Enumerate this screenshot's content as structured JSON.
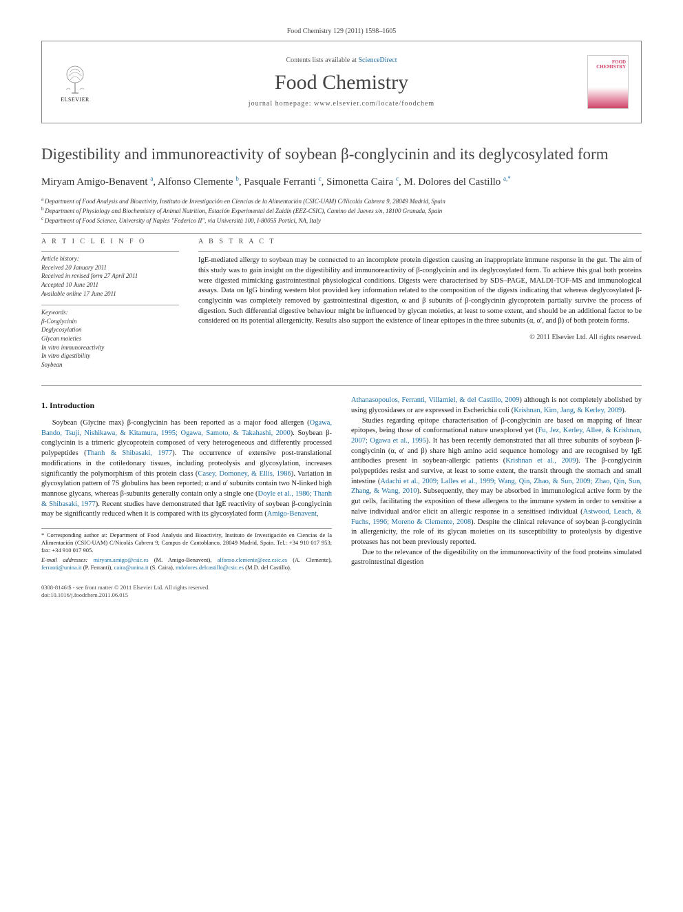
{
  "citation": "Food Chemistry 129 (2011) 1598–1605",
  "header": {
    "contents_prefix": "Contents lists available at ",
    "contents_link": "ScienceDirect",
    "journal": "Food Chemistry",
    "homepage": "journal homepage: www.elsevier.com/locate/foodchem",
    "publisher": "ELSEVIER",
    "cover_brand": "FOOD CHEMISTRY"
  },
  "title": "Digestibility and immunoreactivity of soybean β-conglycinin and its deglycosylated form",
  "authors_html": "Miryam Amigo-Benavent|a|, Alfonso Clemente|b|, Pasquale Ferranti|c|, Simonetta Caira|c|, M. Dolores del Castillo|a,*|",
  "authors": [
    {
      "name": "Miryam Amigo-Benavent",
      "aff": "a"
    },
    {
      "name": "Alfonso Clemente",
      "aff": "b"
    },
    {
      "name": "Pasquale Ferranti",
      "aff": "c"
    },
    {
      "name": "Simonetta Caira",
      "aff": "c"
    },
    {
      "name": "M. Dolores del Castillo",
      "aff": "a,*"
    }
  ],
  "affiliations": [
    {
      "sup": "a",
      "text": "Department of Food Analysis and Bioactivity, Instituto de Investigación en Ciencias de la Alimentación (CSIC-UAM) C/Nicolás Cabrera 9, 28049 Madrid, Spain"
    },
    {
      "sup": "b",
      "text": "Department of Physiology and Biochemistry of Animal Nutrition, Estación Experimental del Zaidín (EEZ-CSIC), Camino del Jueves s/n, 18100 Granada, Spain"
    },
    {
      "sup": "c",
      "text": "Department of Food Science, University of Naples \"Federico II\", via Università 100, I-80055 Portici, NA, Italy"
    }
  ],
  "article_info": {
    "label": "A R T I C L E   I N F O",
    "history_label": "Article history:",
    "history": [
      "Received 20 January 2011",
      "Received in revised form 27 April 2011",
      "Accepted 10 June 2011",
      "Available online 17 June 2011"
    ],
    "keywords_label": "Keywords:",
    "keywords": [
      "β-Conglycinin",
      "Deglycosylation",
      "Glycan moieties",
      "In vitro immunoreactivity",
      "In vitro digestibility",
      "Soybean"
    ]
  },
  "abstract": {
    "label": "A B S T R A C T",
    "text": "IgE-mediated allergy to soybean may be connected to an incomplete protein digestion causing an inappropriate immune response in the gut. The aim of this study was to gain insight on the digestibility and immunoreactivity of β-conglycinin and its deglycosylated form. To achieve this goal both proteins were digested mimicking gastrointestinal physiological conditions. Digests were characterised by SDS–PAGE, MALDI-TOF-MS and immunological assays. Data on IgG binding western blot provided key information related to the composition of the digests indicating that whereas deglycosylated β-conglycinin was completely removed by gastrointestinal digestion, α and β subunits of β-conglycinin glycoprotein partially survive the process of digestion. Such differential digestive behaviour might be influenced by glycan moieties, at least to some extent, and should be an additional factor to be considered on its potential allergenicity. Results also support the existence of linear epitopes in the three subunits (α, α′, and β) of both protein forms.",
    "copyright": "© 2011 Elsevier Ltd. All rights reserved."
  },
  "intro": {
    "heading": "1. Introduction",
    "p1a": "Soybean (Glycine max) β-conglycinin has been reported as a major food allergen (",
    "p1cite1": "Ogawa, Bando, Tsuji, Nishikawa, & Kitamura, 1995; Ogawa, Samoto, & Takahashi, 2000",
    "p1b": "). Soybean β-conglycinin is a trimeric glycoprotein composed of very heterogeneous and differently processed polypeptides (",
    "p1cite2": "Thanh & Shibasaki, 1977",
    "p1c": "). The occurrence of extensive post-translational modifications in the cotiledonary tissues, including proteolysis and glycosylation, increases significantly the polymorphism of this protein class (",
    "p1cite3": "Casey, Domoney, & Ellis, 1986",
    "p1d": "). Variation in glycosylation pattern of 7S globulins has been reported; α and α′ subunits contain two N-linked high mannose glycans, whereas β-subunits generally contain only a single one (",
    "p1cite4": "Doyle et al., 1986; Thanh & Shibasaki, 1977",
    "p1e": "). Recent studies have demonstrated that IgE reactivity of soybean β-conglycinin may be significantly reduced when it is compared with its glycosylated form (",
    "p1cite5": "Amigo-Benavent, ",
    "p1cite5b": "Athanasopoulos, Ferranti, Villamiel, & del Castillo, 2009",
    "p1f": ") although is not completely abolished by using glycosidases or are expressed in Escherichia coli (",
    "p1cite6": "Krishnan, Kim, Jang, & Kerley, 2009",
    "p1g": ").",
    "p2a": "Studies regarding epitope characterisation of β-conglycinin are based on mapping of linear epitopes, being those of conformational nature unexplored yet (",
    "p2cite1": "Fu, Jez, Kerley, Allee, & Krishnan, 2007; Ogawa et al., 1995",
    "p2b": "). It has been recently demonstrated that all three subunits of soybean β-conglycinin (α, α′ and β) share high amino acid sequence homology and are recognised by IgE antibodies present in soybean-allergic patients (",
    "p2cite2": "Krishnan et al., 2009",
    "p2c": "). The β-conglycinin polypeptides resist and survive, at least to some extent, the transit through the stomach and small intestine (",
    "p2cite3": "Adachi et al., 2009; Lalles et al., 1999; Wang, Qin, Zhao, & Sun, 2009; Zhao, Qin, Sun, Zhang, & Wang, 2010",
    "p2d": "). Subsequently, they may be absorbed in immunological active form by the gut cells, facilitating the exposition of these allergens to the immune system in order to sensitise a naïve individual and/or elicit an allergic response in a sensitised individual (",
    "p2cite4": "Astwood, Leach, & Fuchs, 1996; Moreno & Clemente, 2008",
    "p2e": "). Despite the clinical relevance of soybean β-conglycinin in allergenicity, the role of its glycan moieties on its susceptibility to proteolysis by digestive proteases has not been previously reported.",
    "p3": "Due to the relevance of the digestibility on the immunoreactivity of the food proteins simulated gastrointestinal digestion"
  },
  "footnote": {
    "corr_label": "* Corresponding author at: Department of Food Analysis and Bioactivity, Instituto de Investigación en Ciencias de la Alimentación (CSIC-UAM) C/Nicolás Cabrera 9, Campus de Cantoblanco, 28049 Madrid, Spain. Tel.: +34 910 017 953; fax: +34 910 017 905.",
    "email_label": "E-mail addresses: ",
    "emails": [
      {
        "addr": "miryam.amigo@csic.es",
        "who": "(M. Amigo-Benavent)"
      },
      {
        "addr": "alfonso.clemente@eez.csic.es",
        "who": "(A. Clemente)"
      },
      {
        "addr": "ferranti@unina.it",
        "who": "(P. Ferranti)"
      },
      {
        "addr": "caira@unina.it",
        "who": "(S. Caira)"
      },
      {
        "addr": "mdolores.delcastillo@csic.es",
        "who": "(M.D. del Castillo)"
      }
    ]
  },
  "footer": {
    "issn": "0308-8146/$ - see front matter © 2011 Elsevier Ltd. All rights reserved.",
    "doi": "doi:10.1016/j.foodchem.2011.06.015"
  },
  "colors": {
    "link": "#1a6b9f",
    "text": "#1a1a1a",
    "rule": "#999999",
    "journal_title": "#444444"
  },
  "typography": {
    "body_pt": 10.5,
    "title_pt": 23,
    "journal_pt": 30,
    "affil_pt": 9,
    "footnote_pt": 8.5,
    "font_family": "Georgia, 'Times New Roman', serif"
  }
}
